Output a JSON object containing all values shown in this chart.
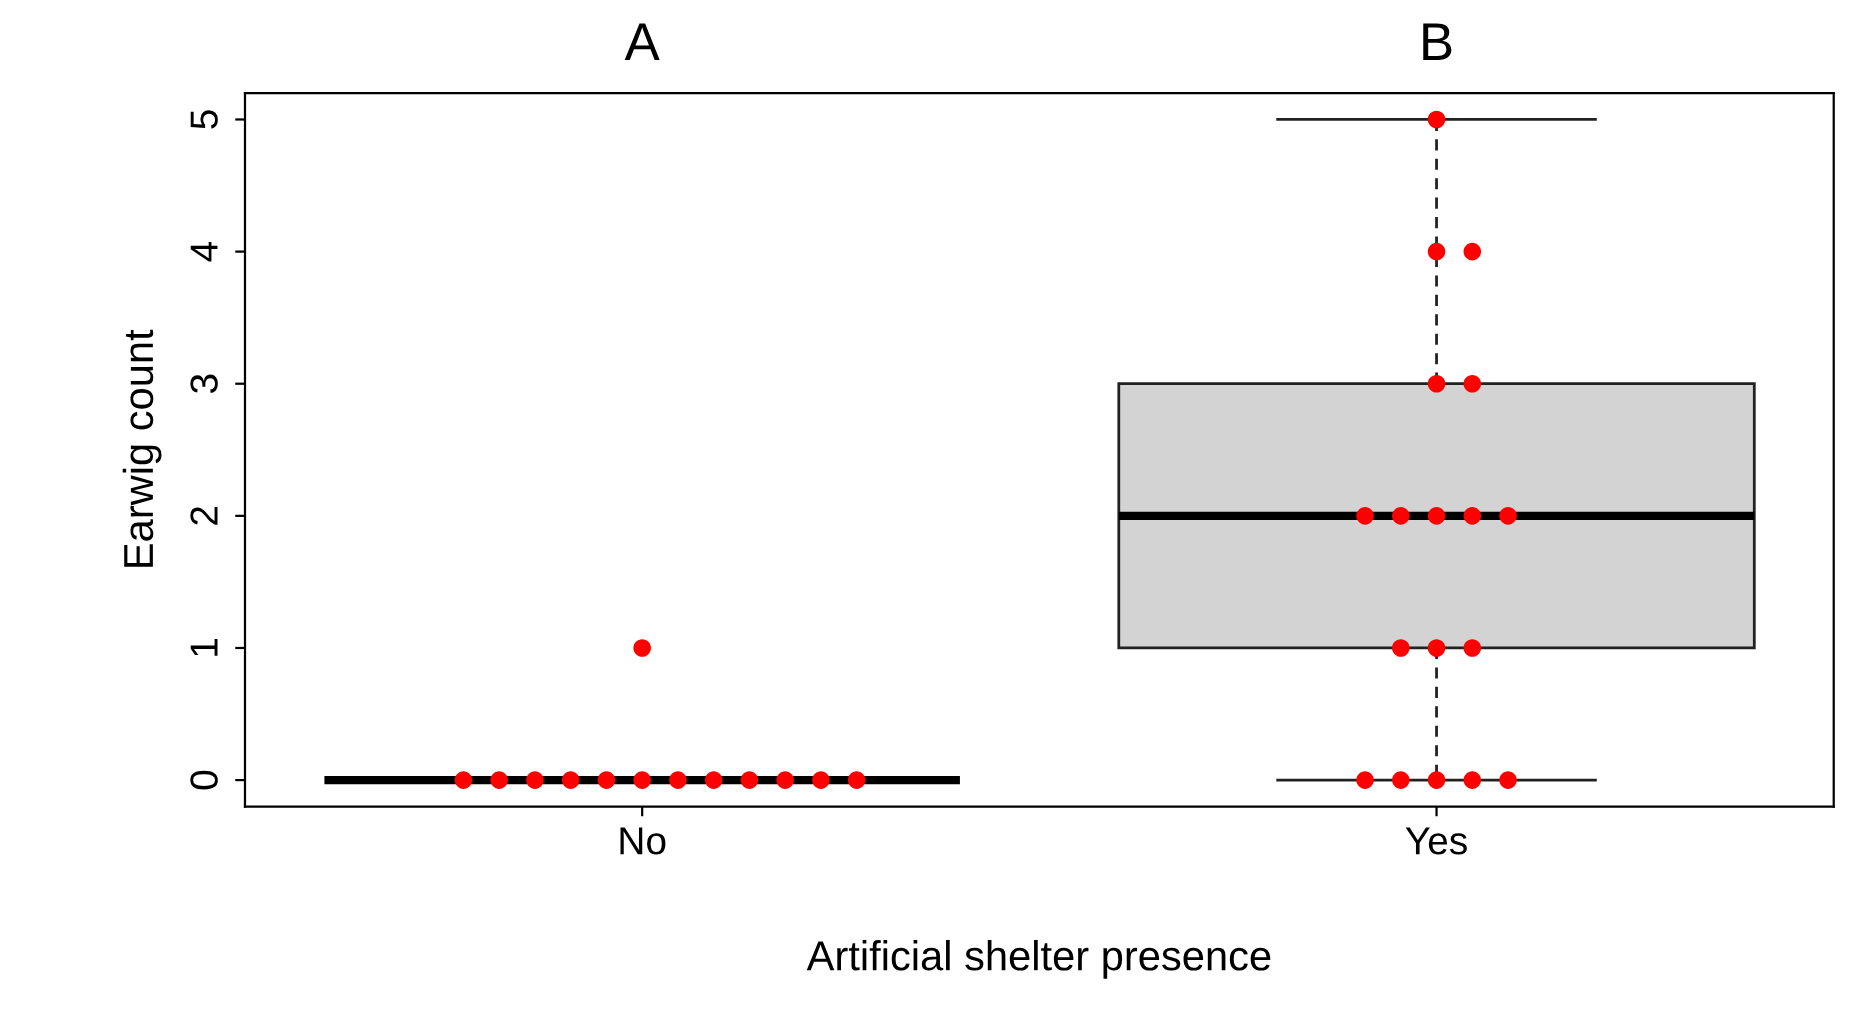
{
  "chart_data": {
    "type": "box",
    "xlabel": "Artificial shelter presence",
    "ylabel": "Earwig count",
    "categories": [
      "No",
      "Yes"
    ],
    "boxes": [
      {
        "low": 0,
        "q1": 0,
        "median": 0,
        "q3": 0,
        "high": 0
      },
      {
        "low": 0,
        "q1": 1,
        "median": 2,
        "q3": 3,
        "high": 5
      }
    ],
    "color": "#d3d3d3",
    "series": [
      {
        "type": "scatter",
        "color": "#ff0000",
        "x": [
          "No",
          "No",
          "No",
          "No",
          "No",
          "No",
          "No",
          "No",
          "No",
          "No",
          "No",
          "No",
          "No",
          "Yes",
          "Yes",
          "Yes",
          "Yes",
          "Yes",
          "Yes",
          "Yes",
          "Yes",
          "Yes",
          "Yes",
          "Yes",
          "Yes",
          "Yes",
          "Yes",
          "Yes",
          "Yes",
          "Yes",
          "Yes"
        ],
        "values": [
          1,
          0,
          0,
          0,
          0,
          0,
          0,
          0,
          0,
          0,
          0,
          0,
          0,
          5,
          4,
          4,
          3,
          3,
          2,
          2,
          2,
          2,
          2,
          1,
          1,
          1,
          0,
          0,
          0,
          0,
          0
        ]
      }
    ],
    "annotations": [
      "A",
      "B"
    ],
    "ylim": [
      -0.2,
      5.2
    ],
    "yticks": [
      0,
      1,
      2,
      3,
      4,
      5
    ],
    "marker": "circle"
  }
}
